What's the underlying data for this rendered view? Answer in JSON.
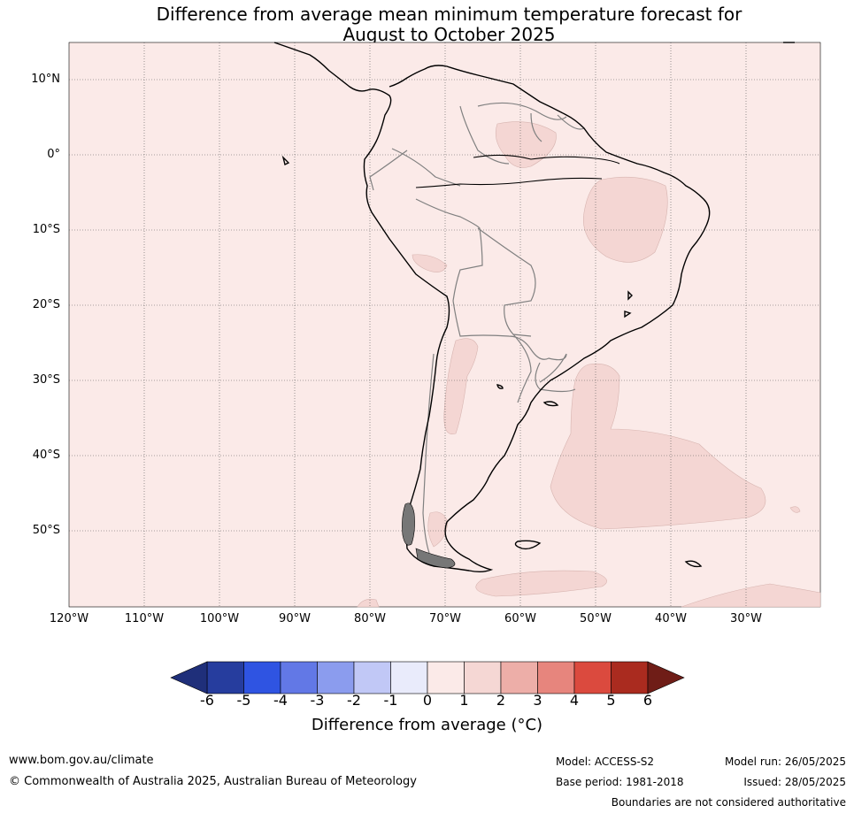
{
  "title": {
    "line1": "Difference from average mean minimum temperature forecast for",
    "line2": "August to October 2025"
  },
  "map": {
    "region": "South America",
    "lat_labels": [
      "10°N",
      "0°",
      "10°S",
      "20°S",
      "30°S",
      "40°S",
      "50°S"
    ],
    "lon_labels": [
      "120°W",
      "110°W",
      "100°W",
      "90°W",
      "80°W",
      "70°W",
      "60°W",
      "50°W",
      "40°W",
      "30°W"
    ],
    "background_color": "#fbeae8",
    "anomaly_fill_color": "#f4d6d3",
    "grid": "dotted"
  },
  "colorbar": {
    "ticks": [
      "-6",
      "-5",
      "-4",
      "-3",
      "-2",
      "-1",
      "0",
      "1",
      "2",
      "3",
      "4",
      "5",
      "6"
    ],
    "colors": [
      "#263d9e",
      "#2f54e2",
      "#6278e6",
      "#8b9cee",
      "#c1c8f6",
      "#e9ebfb",
      "#fbeae8",
      "#f5d7d4",
      "#edaea8",
      "#e7857d",
      "#db4a3e",
      "#aa2b1f"
    ],
    "under_color": "#1f2f7a",
    "over_color": "#6f1d17",
    "label": "Difference from average (°C)"
  },
  "footer": {
    "website": "www.bom.gov.au/climate",
    "copyright": "© Commonwealth of Australia 2025, Australian Bureau of Meteorology",
    "model": "Model: ACCESS-S2",
    "base_period": "Base period: 1981-2018",
    "model_run": "Model run: 26/05/2025",
    "issued": "Issued: 28/05/2025",
    "disclaimer": "Boundaries are not considered authoritative"
  }
}
